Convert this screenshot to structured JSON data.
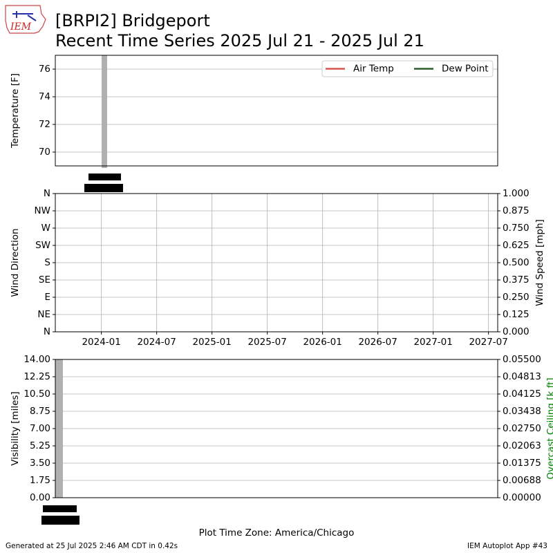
{
  "header": {
    "logo_text": "IEM",
    "title": "[BRPI2] Bridgeport",
    "subtitle": "Recent Time Series 2025 Jul 21 - 2025 Jul 21"
  },
  "chart_data": [
    {
      "type": "line",
      "ylabel": "Temperature [F]",
      "ylim": [
        69,
        77
      ],
      "yticks": [
        70,
        72,
        74,
        76
      ],
      "grid": "y",
      "legend": "upper right",
      "x": [],
      "series": [
        {
          "name": "Air Temp",
          "color": "#d9534f",
          "values": []
        },
        {
          "name": "Dew Point",
          "color": "#2b5e2b",
          "values": []
        }
      ]
    },
    {
      "type": "line",
      "ylabel": "Wind Direction",
      "y2label": "Wind Speed [mph]",
      "grid": "both",
      "ylim": [
        0,
        360
      ],
      "yticks": [
        {
          "value": 0,
          "label": "N"
        },
        {
          "value": 45,
          "label": "NE"
        },
        {
          "value": 90,
          "label": "E"
        },
        {
          "value": 135,
          "label": "SE"
        },
        {
          "value": 180,
          "label": "S"
        },
        {
          "value": 225,
          "label": "SW"
        },
        {
          "value": 270,
          "label": "W"
        },
        {
          "value": 315,
          "label": "NW"
        },
        {
          "value": 360,
          "label": "N"
        }
      ],
      "y2lim": [
        0,
        1
      ],
      "y2ticks": [
        {
          "value": 0,
          "label": "0.000"
        },
        {
          "value": 0.125,
          "label": "0.125"
        },
        {
          "value": 0.25,
          "label": "0.250"
        },
        {
          "value": 0.375,
          "label": "0.375"
        },
        {
          "value": 0.5,
          "label": "0.500"
        },
        {
          "value": 0.625,
          "label": "0.625"
        },
        {
          "value": 0.75,
          "label": "0.750"
        },
        {
          "value": 0.875,
          "label": "0.875"
        },
        {
          "value": 1,
          "label": "1.000"
        }
      ],
      "xlim": [
        "2023-08",
        "2027-08"
      ],
      "xticks": [
        "2024-01",
        "2024-07",
        "2025-01",
        "2025-07",
        "2026-01",
        "2026-07",
        "2027-01",
        "2027-07"
      ],
      "x": [],
      "series": []
    },
    {
      "type": "line",
      "ylabel": "Visibility [miles]",
      "y2label": "Overcast Ceiling [k ft]",
      "y2label_color": "#008000",
      "grid": "y",
      "xlabel": "Plot Time Zone: America/Chicago",
      "ylim": [
        0,
        14
      ],
      "yticks": [
        {
          "value": 0,
          "label": "0.00"
        },
        {
          "value": 1.75,
          "label": "1.75"
        },
        {
          "value": 3.5,
          "label": "3.50"
        },
        {
          "value": 5.25,
          "label": "5.25"
        },
        {
          "value": 7,
          "label": "7.00"
        },
        {
          "value": 8.75,
          "label": "8.75"
        },
        {
          "value": 10.5,
          "label": "10.50"
        },
        {
          "value": 12.25,
          "label": "12.25"
        },
        {
          "value": 14,
          "label": "14.00"
        }
      ],
      "y2lim": [
        0,
        0.055
      ],
      "y2ticks": [
        {
          "value": 0,
          "label": "0.00000"
        },
        {
          "value": 0.006875,
          "label": "0.00688"
        },
        {
          "value": 0.01375,
          "label": "0.01375"
        },
        {
          "value": 0.020625,
          "label": "0.02063"
        },
        {
          "value": 0.0275,
          "label": "0.02750"
        },
        {
          "value": 0.034375,
          "label": "0.03438"
        },
        {
          "value": 0.04125,
          "label": "0.04125"
        },
        {
          "value": 0.048125,
          "label": "0.04813"
        },
        {
          "value": 0.055,
          "label": "0.05500"
        }
      ],
      "x": [],
      "series": []
    }
  ],
  "footer": {
    "left": "Generated at 25 Jul 2025 2:46 AM CDT in 0.42s",
    "right": "IEM Autoplot App #43"
  }
}
